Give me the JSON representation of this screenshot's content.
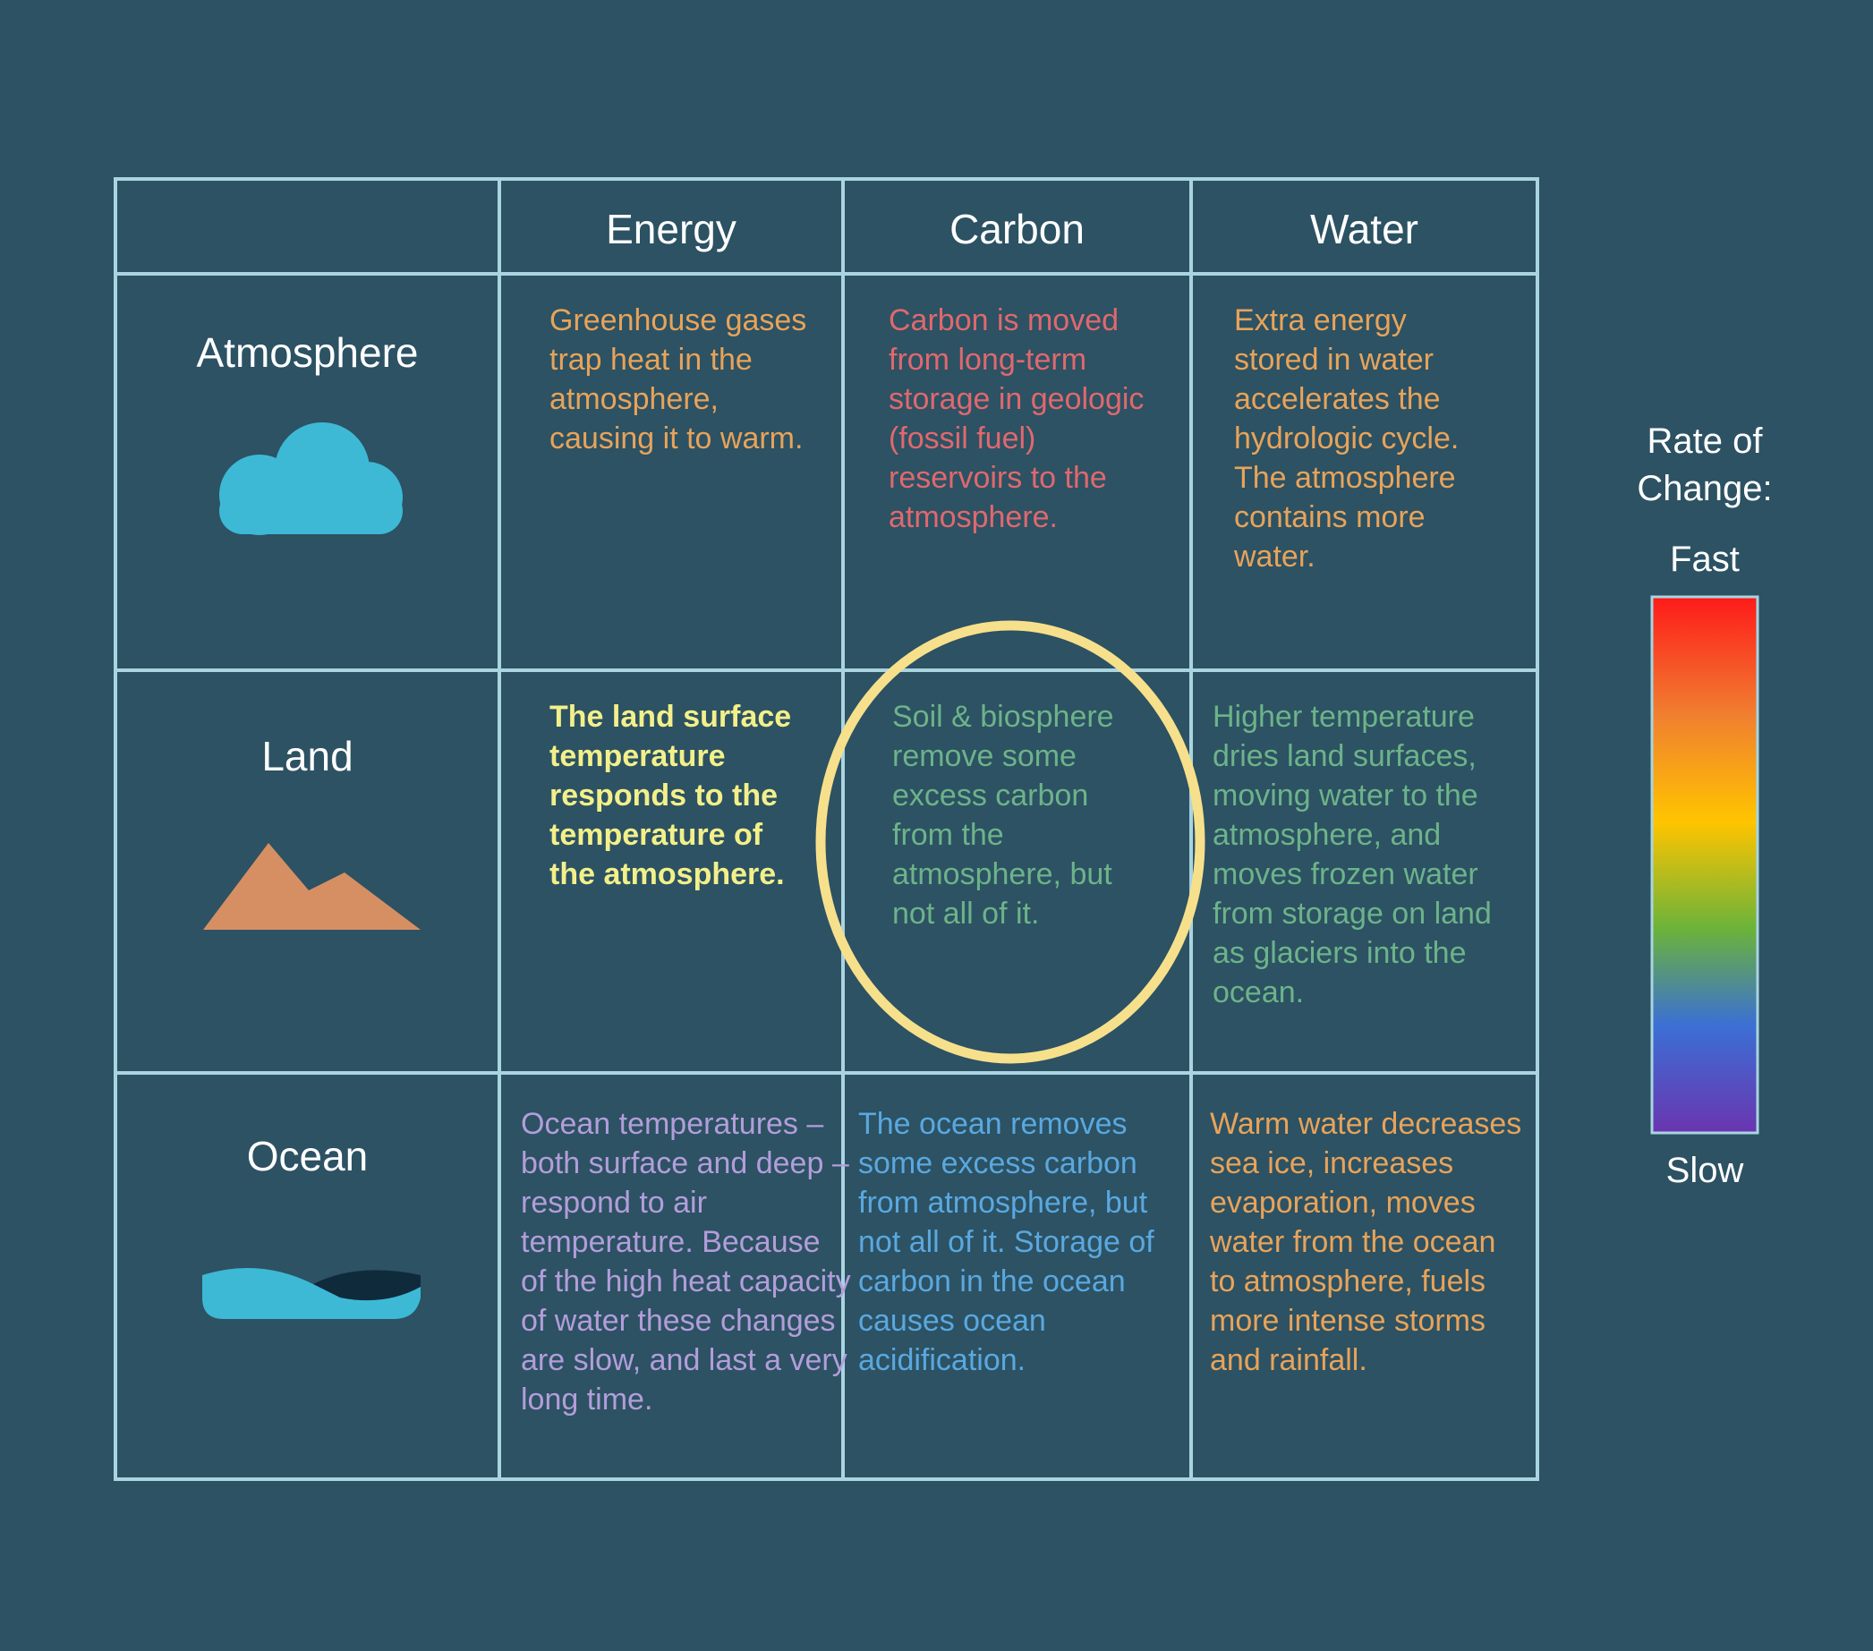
{
  "header": {
    "columns": [
      "Energy",
      "Carbon",
      "Water"
    ]
  },
  "rows": [
    {
      "label": "Atmosphere",
      "cells": [
        "Greenhouse gases trap heat in the atmosphere, causing it to warm.",
        "Carbon is moved from long-term storage in geologic (fossil fuel) reservoirs to the atmosphere.",
        "Extra energy stored in water accelerates the hydrologic cycle. The atmosphere contains more water."
      ]
    },
    {
      "label": "Land",
      "cells": [
        "The land surface temperature responds to the temperature of the atmosphere.",
        "Soil & biosphere remove some excess carbon from the atmosphere, but not all of it.",
        "Higher temperature dries land surfaces, moving water to the atmosphere, and moves frozen water from storage on land as glaciers into the ocean."
      ]
    },
    {
      "label": "Ocean",
      "cells": [
        "Ocean temperatures – both surface and deep – respond to air temperature. Because of the high heat capacity of water these changes are slow, and last a very long time.",
        "The ocean removes some excess carbon from atmosphere, but not all of it. Storage of carbon in the ocean causes ocean acidification.",
        "Warm water decreases sea ice, increases evaporation, moves water from the ocean to atmosphere, fuels more intense storms and rainfall."
      ]
    }
  ],
  "legend": {
    "title": "Rate of Change:",
    "fast": "Fast",
    "slow": "Slow"
  }
}
